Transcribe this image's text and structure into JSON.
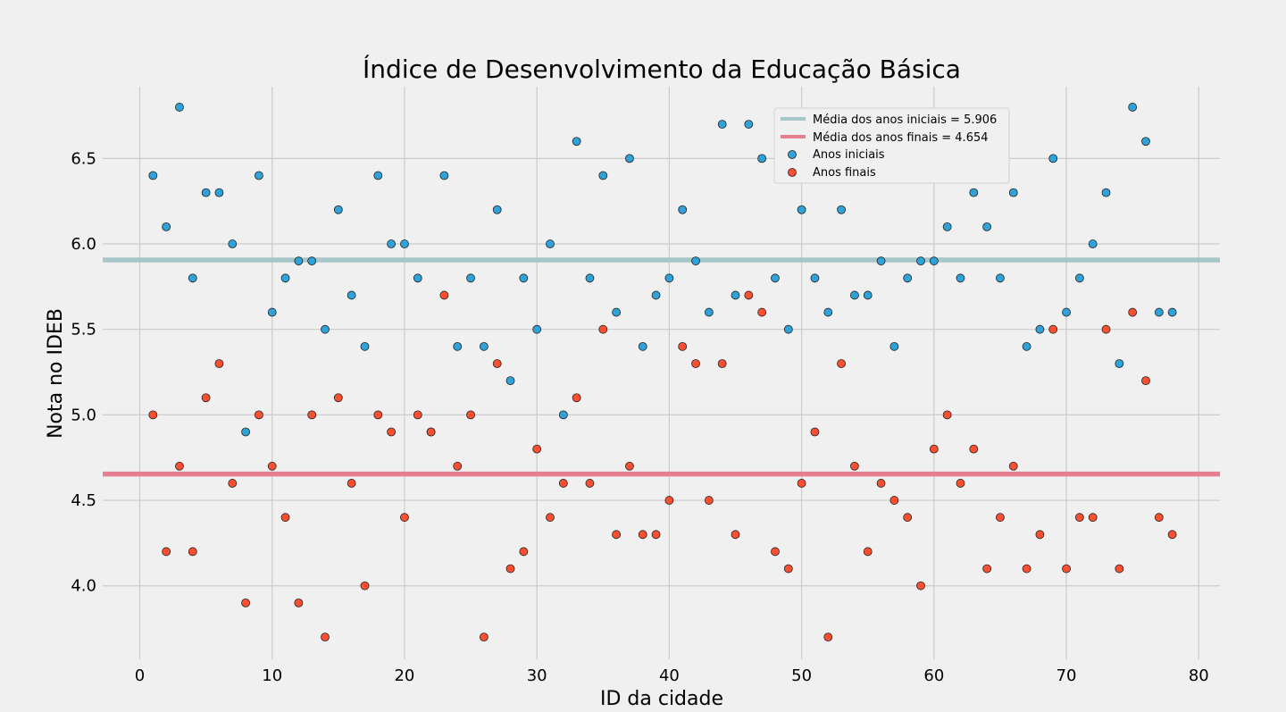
{
  "chart_data": {
    "type": "scatter",
    "title": "Índice de Desenvolvimento da Educação Básica",
    "xlabel": "ID da cidade",
    "ylabel": "Nota no IDEB",
    "xlim": [
      -2.8,
      81.6
    ],
    "ylim": [
      3.57,
      6.92
    ],
    "xticks": [
      0,
      10,
      20,
      30,
      40,
      50,
      60,
      70,
      80
    ],
    "yticks": [
      4.0,
      4.5,
      5.0,
      5.5,
      6.0,
      6.5
    ],
    "ytick_labels": [
      "4.0",
      "4.5",
      "5.0",
      "5.5",
      "6.0",
      "6.5"
    ],
    "grid": true,
    "legend_position": "upper-right",
    "mean_lines": [
      {
        "label": "Média dos anos iniciais = 5.906",
        "value": 5.906,
        "color": "#a7c6c8"
      },
      {
        "label": "Média dos anos finais = 4.654",
        "value": 4.654,
        "color": "#e57f90"
      }
    ],
    "x": [
      1,
      2,
      3,
      4,
      5,
      6,
      7,
      8,
      9,
      10,
      11,
      12,
      13,
      14,
      15,
      16,
      17,
      18,
      19,
      20,
      21,
      22,
      23,
      24,
      25,
      26,
      27,
      28,
      29,
      30,
      31,
      32,
      33,
      34,
      35,
      36,
      37,
      38,
      39,
      40,
      41,
      42,
      43,
      44,
      45,
      46,
      47,
      48,
      49,
      50,
      51,
      52,
      53,
      54,
      55,
      56,
      57,
      58,
      59,
      60,
      61,
      62,
      63,
      64,
      65,
      66,
      67,
      68,
      69,
      70,
      71,
      72,
      73,
      74,
      75,
      76,
      77,
      78
    ],
    "series": [
      {
        "name": "Anos iniciais",
        "color": "#30a2da",
        "values": [
          6.4,
          6.1,
          6.8,
          5.8,
          6.3,
          6.3,
          6.0,
          4.9,
          6.4,
          5.6,
          5.8,
          5.9,
          5.9,
          5.5,
          6.2,
          5.7,
          5.4,
          6.4,
          6.0,
          6.0,
          5.8,
          4.9,
          6.4,
          5.4,
          5.8,
          5.4,
          6.2,
          5.2,
          5.8,
          5.5,
          6.0,
          5.0,
          6.6,
          5.8,
          6.4,
          5.6,
          6.5,
          5.4,
          5.7,
          5.8,
          6.2,
          5.9,
          5.6,
          6.7,
          5.7,
          6.7,
          6.5,
          5.8,
          5.5,
          6.2,
          5.8,
          5.6,
          6.2,
          5.7,
          5.7,
          5.9,
          5.4,
          5.8,
          5.9,
          5.9,
          6.1,
          5.8,
          6.3,
          6.1,
          5.8,
          6.3,
          5.4,
          5.5,
          6.5,
          5.6,
          5.8,
          6.0,
          6.3,
          5.3,
          6.8,
          6.6,
          5.6,
          5.6
        ]
      },
      {
        "name": "Anos finais",
        "color": "#fc4f30",
        "values": [
          5.0,
          4.2,
          4.7,
          4.2,
          5.1,
          5.3,
          4.6,
          3.9,
          5.0,
          4.7,
          4.4,
          3.9,
          5.0,
          3.7,
          5.1,
          4.6,
          4.0,
          5.0,
          4.9,
          4.4,
          5.0,
          4.9,
          5.7,
          4.7,
          5.0,
          3.7,
          5.3,
          4.1,
          4.2,
          4.8,
          4.4,
          4.6,
          5.1,
          4.6,
          5.5,
          4.3,
          4.7,
          4.3,
          4.3,
          4.5,
          5.4,
          5.3,
          4.5,
          5.3,
          4.3,
          5.7,
          5.6,
          4.2,
          4.1,
          4.6,
          4.9,
          3.7,
          5.3,
          4.7,
          4.2,
          4.6,
          4.5,
          4.4,
          4.0,
          4.8,
          5.0,
          4.6,
          4.8,
          4.1,
          4.4,
          4.7,
          4.1,
          4.3,
          5.5,
          4.1,
          4.4,
          4.4,
          5.5,
          4.1,
          5.6,
          5.2,
          4.4,
          4.3
        ]
      }
    ]
  }
}
